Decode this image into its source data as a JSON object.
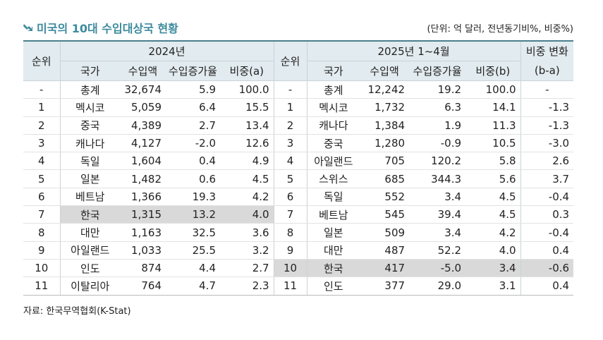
{
  "header": {
    "title": "미국의 10대 수입대상국 현황",
    "unit": "(단위: 억 달러, 전년동기비%, 비중%)"
  },
  "table": {
    "header_row1": [
      "순위",
      "2024년",
      "순위",
      "2025년 1~4월",
      "비중 변화"
    ],
    "header_row2": [
      "국가",
      "수입액",
      "수입증가율",
      "비중(a)",
      "국가",
      "수입액",
      "수입증가율",
      "비중(b)",
      "(b-a)"
    ],
    "rows": [
      [
        "-",
        "총계",
        "32,674",
        "5.9",
        "100.0",
        "-",
        "총계",
        "12,242",
        "19.2",
        "100.0",
        "-"
      ],
      [
        "1",
        "멕시코",
        "5,059",
        "6.4",
        "15.5",
        "1",
        "멕시코",
        "1,732",
        "6.3",
        "14.1",
        "-1.3"
      ],
      [
        "2",
        "중국",
        "4,389",
        "2.7",
        "13.4",
        "2",
        "캐나다",
        "1,384",
        "1.9",
        "11.3",
        "-1.3"
      ],
      [
        "3",
        "캐나다",
        "4,127",
        "-2.0",
        "12.6",
        "3",
        "중국",
        "1,280",
        "-0.9",
        "10.5",
        "-3.0"
      ],
      [
        "4",
        "독일",
        "1,604",
        "0.4",
        "4.9",
        "4",
        "아일랜드",
        "705",
        "120.2",
        "5.8",
        "2.6"
      ],
      [
        "5",
        "일본",
        "1,482",
        "0.6",
        "4.5",
        "5",
        "스위스",
        "685",
        "344.3",
        "5.6",
        "3.7"
      ],
      [
        "6",
        "베트남",
        "1,366",
        "19.3",
        "4.2",
        "6",
        "독일",
        "552",
        "3.4",
        "4.5",
        "-0.4"
      ],
      [
        "7",
        "한국",
        "1,315",
        "13.2",
        "4.0",
        "7",
        "베트남",
        "545",
        "39.4",
        "4.5",
        "0.3"
      ],
      [
        "8",
        "대만",
        "1,163",
        "32.5",
        "3.6",
        "8",
        "일본",
        "509",
        "3.4",
        "4.2",
        "-0.4"
      ],
      [
        "9",
        "아일랜드",
        "1,033",
        "25.5",
        "3.2",
        "9",
        "대만",
        "487",
        "52.2",
        "4.0",
        "0.4"
      ],
      [
        "10",
        "인도",
        "874",
        "4.4",
        "2.7",
        "10",
        "한국",
        "417",
        "-5.0",
        "3.4",
        "-0.6"
      ],
      [
        "11",
        "이탈리아",
        "764",
        "4.7",
        "2.3",
        "11",
        "인도",
        "377",
        "29.0",
        "3.1",
        "0.4"
      ]
    ]
  },
  "source": "자료: 한국무역협회(K-Stat)"
}
